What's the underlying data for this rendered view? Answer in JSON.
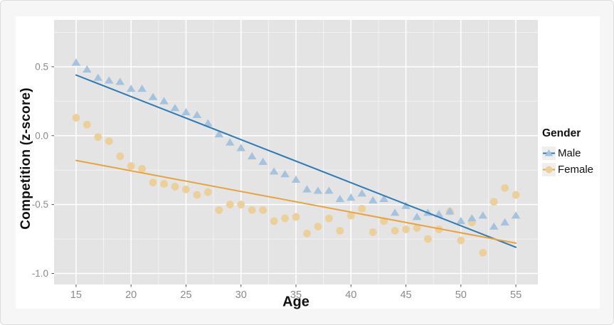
{
  "colors": {
    "page_background": "#F6F6F6",
    "card_background": "#FFFFFF",
    "panel_background": "#E4E4E4",
    "grid": "#FFFFFF",
    "tick_text": "#8A8A8A",
    "tick_mark": "#4D4D4D",
    "axis_title": "#111111",
    "legend_key_background": "#EFEFEF"
  },
  "chart_data": {
    "type": "scatter",
    "title": "",
    "xlabel": "Age",
    "ylabel": "Competition (z-score)",
    "grid": "on",
    "x_domain": [
      13,
      57
    ],
    "y_domain": [
      -1.08,
      0.84
    ],
    "x_ticks": [
      15,
      20,
      25,
      30,
      35,
      40,
      45,
      50,
      55
    ],
    "x_tick_labels": [
      "15",
      "20",
      "25",
      "30",
      "35",
      "40",
      "45",
      "50",
      "55"
    ],
    "x_minor_ticks": [
      17.5,
      22.5,
      27.5,
      32.5,
      37.5,
      42.5,
      47.5,
      52.5
    ],
    "y_ticks": [
      0.5,
      0.0,
      -0.5,
      -1.0
    ],
    "y_tick_labels": [
      "0.5",
      "0.0",
      "-0.5",
      "-1.0"
    ],
    "y_minor_ticks": [
      0.75,
      0.25,
      -0.25,
      -0.75
    ],
    "x": [
      15,
      16,
      17,
      18,
      19,
      20,
      21,
      22,
      23,
      24,
      25,
      26,
      27,
      28,
      29,
      30,
      31,
      32,
      33,
      34,
      35,
      36,
      37,
      38,
      39,
      40,
      41,
      42,
      43,
      44,
      45,
      46,
      47,
      48,
      49,
      50,
      51,
      52,
      53,
      54,
      55
    ],
    "legend": {
      "title": "Gender",
      "position": "right",
      "items": [
        {
          "label": "Male"
        },
        {
          "label": "Female"
        }
      ]
    },
    "series": [
      {
        "name": "Male",
        "marker": "triangle",
        "point_color": "#A5C3DC",
        "line_color": "#2E7AB5",
        "values": [
          0.53,
          0.48,
          0.42,
          0.4,
          0.39,
          0.34,
          0.34,
          0.28,
          0.25,
          0.2,
          0.17,
          0.15,
          0.09,
          0.01,
          -0.05,
          -0.09,
          -0.15,
          -0.19,
          -0.26,
          -0.28,
          -0.32,
          -0.39,
          -0.4,
          -0.4,
          -0.46,
          -0.45,
          -0.42,
          -0.47,
          -0.46,
          -0.56,
          -0.51,
          -0.59,
          -0.56,
          -0.57,
          -0.55,
          -0.62,
          -0.6,
          -0.58,
          -0.66,
          -0.63,
          -0.58
        ],
        "trend_line": {
          "x": [
            15,
            55
          ],
          "y": [
            0.44,
            -0.81
          ]
        }
      },
      {
        "name": "Female",
        "marker": "circle",
        "point_color": "#ECD09C",
        "line_color": "#E9A33C",
        "values": [
          0.13,
          0.08,
          -0.01,
          -0.04,
          -0.15,
          -0.22,
          -0.24,
          -0.34,
          -0.35,
          -0.37,
          -0.39,
          -0.43,
          -0.41,
          -0.54,
          -0.5,
          -0.5,
          -0.54,
          -0.54,
          -0.62,
          -0.6,
          -0.59,
          -0.71,
          -0.66,
          -0.6,
          -0.69,
          -0.58,
          -0.53,
          -0.7,
          -0.62,
          -0.69,
          -0.68,
          -0.67,
          -0.75,
          -0.68,
          -0.55,
          -0.76,
          -0.63,
          -0.85,
          -0.48,
          -0.38,
          -0.43
        ],
        "trend_line": {
          "x": [
            15,
            55
          ],
          "y": [
            -0.18,
            -0.78
          ]
        }
      }
    ]
  }
}
